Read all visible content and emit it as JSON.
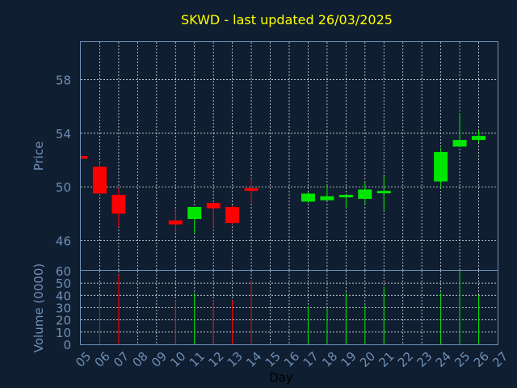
{
  "chart_data": {
    "type": "candlestick",
    "title": "SKWD - last updated 26/03/2025",
    "xlabel": "Day",
    "price_panel": {
      "ylabel": "Price",
      "ylim": [
        43.8,
        60.8
      ],
      "yticks": [
        "46",
        "50",
        "54",
        "58"
      ]
    },
    "volume_panel": {
      "ylabel": "Volume (0000)",
      "ylim": [
        0,
        60
      ],
      "yticks": [
        "0",
        "10",
        "20",
        "30",
        "40",
        "50",
        "60"
      ]
    },
    "x_ticks": [
      "05",
      "06",
      "07",
      "08",
      "09",
      "10",
      "11",
      "12",
      "13",
      "14",
      "15",
      "16",
      "17",
      "18",
      "19",
      "20",
      "21",
      "22",
      "23",
      "24",
      "25",
      "26",
      "27"
    ],
    "candles": [
      {
        "day": 5,
        "open": 52.3,
        "close": 52.1,
        "high": 52.3,
        "low": 52.1,
        "volume": 0
      },
      {
        "day": 6,
        "open": 51.5,
        "close": 49.5,
        "high": 51.8,
        "low": 49.4,
        "volume": 40
      },
      {
        "day": 7,
        "open": 49.4,
        "close": 48.0,
        "high": 49.9,
        "low": 47.0,
        "volume": 57
      },
      {
        "day": 10,
        "open": 47.5,
        "close": 47.2,
        "high": 48.4,
        "low": 46.6,
        "volume": 36
      },
      {
        "day": 11,
        "open": 47.6,
        "close": 48.5,
        "high": 48.5,
        "low": 46.5,
        "volume": 42
      },
      {
        "day": 12,
        "open": 48.8,
        "close": 48.4,
        "high": 48.9,
        "low": 46.9,
        "volume": 36
      },
      {
        "day": 13,
        "open": 48.5,
        "close": 47.3,
        "high": 48.6,
        "low": 47.2,
        "volume": 36
      },
      {
        "day": 14,
        "open": 49.9,
        "close": 49.7,
        "high": 50.6,
        "low": 48.8,
        "volume": 52
      },
      {
        "day": 17,
        "open": 48.9,
        "close": 49.5,
        "high": 49.6,
        "low": 48.8,
        "volume": 31
      },
      {
        "day": 18,
        "open": 49.0,
        "close": 49.3,
        "high": 50.1,
        "low": 49.0,
        "volume": 30
      },
      {
        "day": 19,
        "open": 49.3,
        "close": 49.4,
        "high": 49.4,
        "low": 48.4,
        "volume": 42
      },
      {
        "day": 20,
        "open": 49.1,
        "close": 49.8,
        "high": 50.3,
        "low": 48.7,
        "volume": 32
      },
      {
        "day": 21,
        "open": 49.6,
        "close": 49.7,
        "high": 50.8,
        "low": 48.2,
        "volume": 47
      },
      {
        "day": 24,
        "open": 50.4,
        "close": 52.6,
        "high": 52.9,
        "low": 49.9,
        "volume": 42
      },
      {
        "day": 25,
        "open": 53.0,
        "close": 53.5,
        "high": 55.5,
        "low": 53.0,
        "volume": 60
      },
      {
        "day": 26,
        "open": 53.5,
        "close": 53.8,
        "high": 54.2,
        "low": 53.3,
        "volume": 40
      }
    ],
    "colors": {
      "up": "#00e600",
      "down": "#ff0000",
      "grid": "#ffffff",
      "axis": "#6f8fb7",
      "title": "#ffff00",
      "background": "#0f1e30"
    }
  }
}
